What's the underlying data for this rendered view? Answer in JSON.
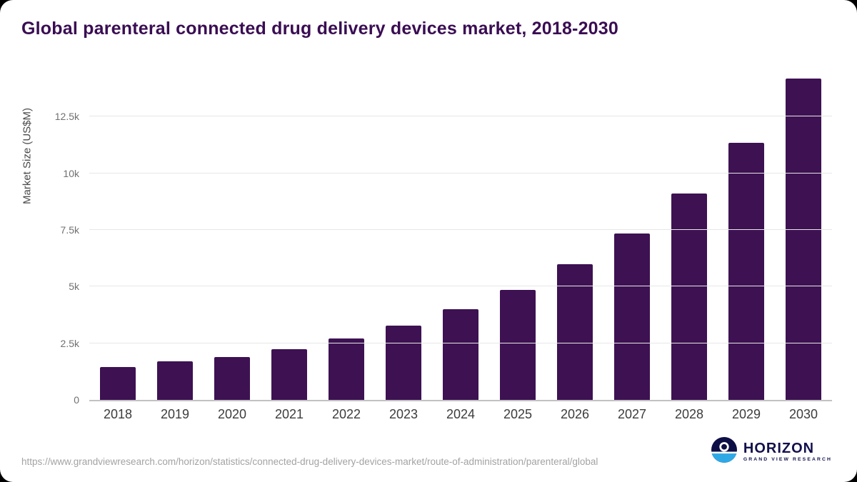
{
  "title": "Global parenteral connected drug delivery devices market, 2018-2030",
  "chart_data": {
    "type": "bar",
    "title": "Global parenteral connected drug delivery devices market, 2018-2030",
    "categories": [
      "2018",
      "2019",
      "2020",
      "2021",
      "2022",
      "2023",
      "2024",
      "2025",
      "2026",
      "2027",
      "2028",
      "2029",
      "2030"
    ],
    "values": [
      1440,
      1690,
      1890,
      2250,
      2700,
      3290,
      4010,
      4850,
      5990,
      7360,
      9110,
      11350,
      14190
    ],
    "xlabel": "",
    "ylabel": "Market Size (US$M)",
    "ylim": [
      0,
      14500
    ],
    "yticks": [
      0,
      2500,
      5000,
      7500,
      10000,
      12500
    ],
    "ytick_labels": [
      "0",
      "2.5k",
      "5k",
      "7.5k",
      "10k",
      "12.5k"
    ],
    "bar_color": "#3d1152",
    "grid": true,
    "legend": "none"
  },
  "footer": {
    "source_url": "https://www.grandviewresearch.com/horizon/statistics/connected-drug-delivery-devices-market/route-of-administration/parenteral/global",
    "logo_title": "HORIZON",
    "logo_subtitle": "GRAND VIEW RESEARCH"
  }
}
